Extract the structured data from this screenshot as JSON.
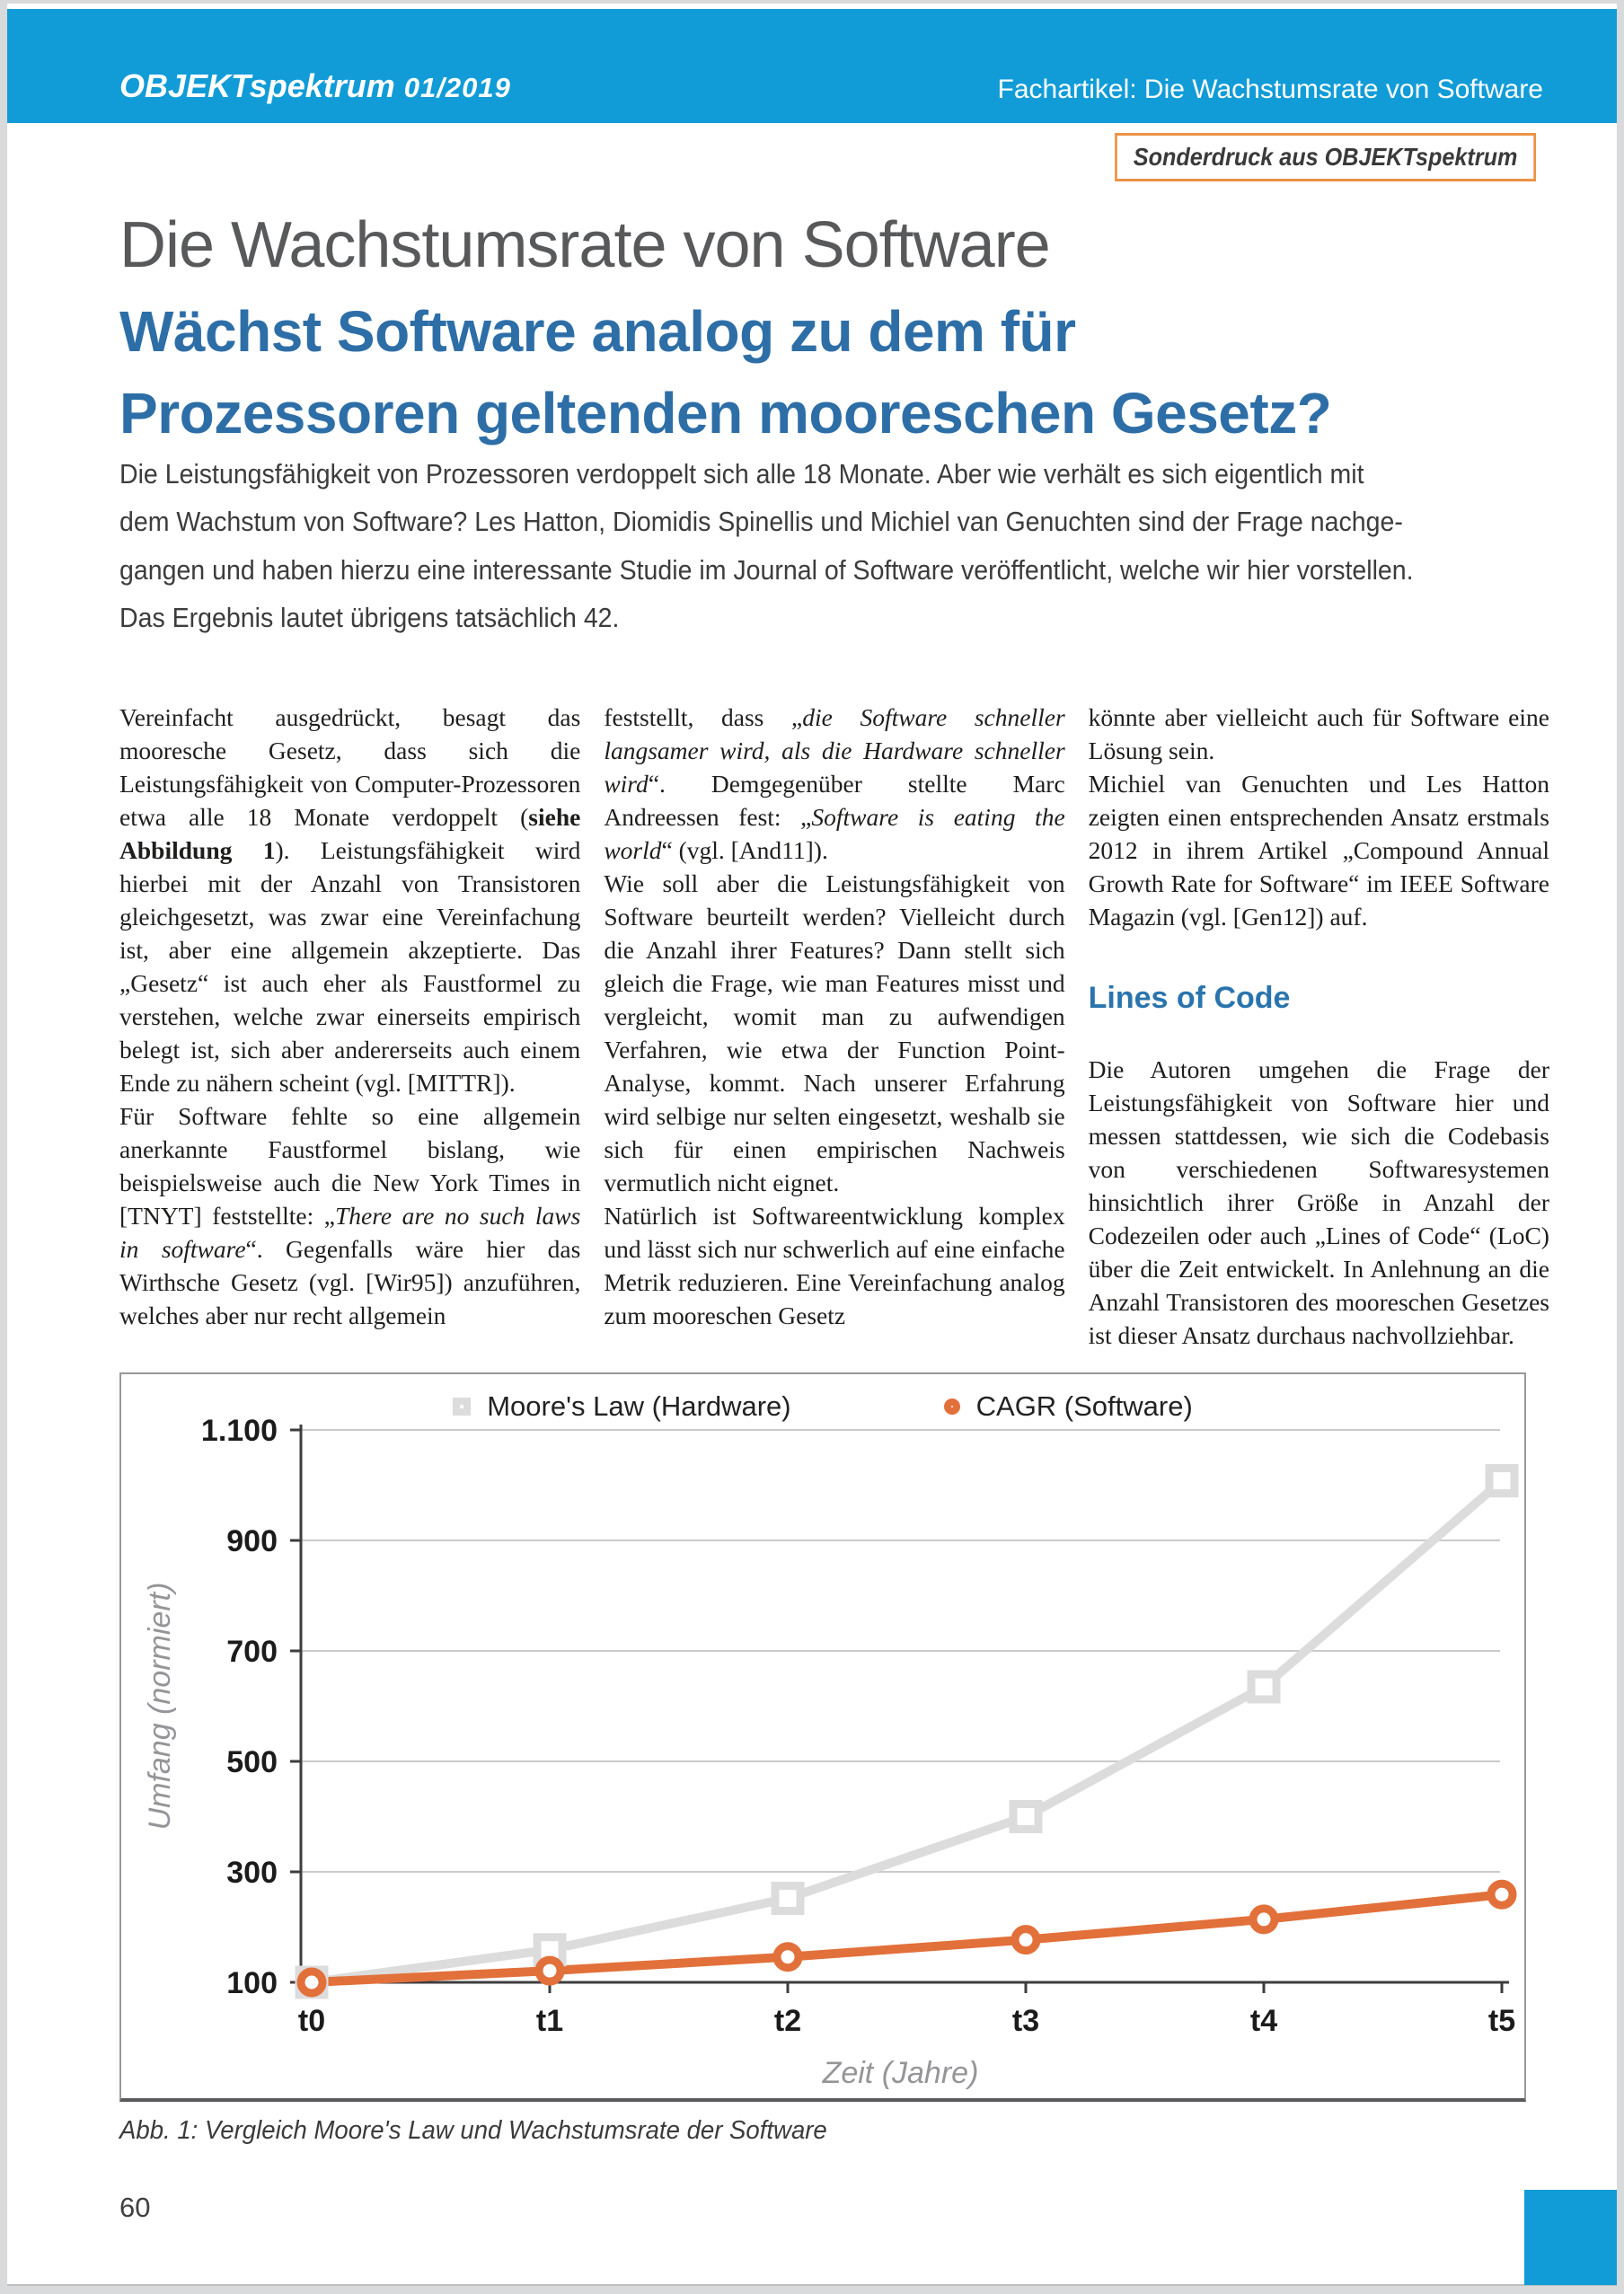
{
  "colors": {
    "brand_blue": "#119cd8",
    "headline_blue": "#2d6ea7",
    "heading_blue": "#2a74ae",
    "accent_orange": "#e2703a",
    "badge_orange": "#eb9246",
    "moore_gray": "#dcdcdc"
  },
  "header": {
    "magazine": "OBJEKTspektrum",
    "issue": "01/2019",
    "article_label": "Fachartikel: Die Wachstumsrate von Software",
    "badge": "Sonderdruck aus OBJEKTspektrum"
  },
  "article": {
    "title": "Die Wachstumsrate von Software",
    "subtitle": "Wächst Software analog zu dem für\nProzessoren geltenden mooreschen Gesetz?",
    "lead": "Die Leistungsfähigkeit von Prozessoren verdoppelt sich alle 18 Monate. Aber wie verhält es sich eigentlich mit\ndem Wachstum von Software? Les Hatton, Diomidis Spinellis und Michiel van Genuchten sind der Frage nachge-\ngangen und haben hierzu eine interessante Studie im Journal of Software veröffentlicht, welche wir hier vorstellen.\nDas Ergebnis lautet übrigens tatsächlich 42."
  },
  "body": {
    "columns": [
      {
        "blocks": [
          {
            "type": "p",
            "runs": [
              {
                "t": "Vereinfacht ausgedrückt, besagt das mooresche Gesetz, dass sich die Leistungsfähigkeit von Computer-Prozessoren etwa alle 18 Monate verdoppelt ("
              },
              {
                "t": "siehe Abbildung 1",
                "s": "b"
              },
              {
                "t": "). Leistungsfähigkeit wird hierbei mit der Anzahl von Transistoren gleichgesetzt, was zwar eine Vereinfachung ist, aber eine allgemein akzeptierte. Das „Gesetz“ ist auch eher als Faustformel zu verstehen, welche zwar einerseits empirisch belegt ist, sich aber andererseits auch einem Ende zu nähern scheint (vgl. [MITTR])."
              }
            ]
          },
          {
            "type": "p",
            "runs": [
              {
                "t": "Für Software fehlte so eine allgemein anerkannte Faustformel bislang, wie beispielsweise auch die New York Times in [TNYT] feststellte: „"
              },
              {
                "t": "There are no such laws in software",
                "s": "i"
              },
              {
                "t": "“. Gegenfalls wäre hier das Wirthsche Gesetz (vgl. [Wir95]) anzuführen, welches aber nur recht allgemein"
              }
            ]
          }
        ]
      },
      {
        "blocks": [
          {
            "type": "p",
            "runs": [
              {
                "t": "feststellt, dass „"
              },
              {
                "t": "die Software schneller langsamer wird, als die Hardware schneller wird",
                "s": "i"
              },
              {
                "t": "“. Demgegenüber stellte Marc Andreessen fest: „"
              },
              {
                "t": "Software is eating the world",
                "s": "i"
              },
              {
                "t": "“ (vgl. [And11])."
              }
            ]
          },
          {
            "type": "p",
            "runs": [
              {
                "t": "Wie soll aber die Leistungsfähigkeit von Software beurteilt werden? Vielleicht durch die Anzahl ihrer Features? Dann stellt sich gleich die Frage, wie man Features misst und vergleicht, womit man zu aufwendigen Verfahren, wie etwa der Function Point-Analyse, kommt. Nach unserer Erfahrung wird selbige nur selten eingesetzt, weshalb sie sich für einen empirischen Nachweis vermutlich nicht eignet."
              }
            ]
          },
          {
            "type": "p",
            "runs": [
              {
                "t": "Natürlich ist Softwareentwicklung komplex und lässt sich nur schwerlich auf eine einfache Metrik reduzieren. Eine Vereinfachung analog zum mooreschen Gesetz"
              }
            ]
          }
        ]
      },
      {
        "blocks": [
          {
            "type": "p",
            "runs": [
              {
                "t": "könnte aber vielleicht auch für Software eine Lösung sein."
              }
            ]
          },
          {
            "type": "p",
            "runs": [
              {
                "t": "Michiel van Genuchten und Les Hatton zeigten einen entsprechenden Ansatz erstmals 2012 in ihrem Artikel „Compound Annual Growth Rate for Software“ im IEEE Software Magazin (vgl. [Gen12]) auf."
              }
            ]
          },
          {
            "type": "h2",
            "text": "Lines of Code"
          },
          {
            "type": "p",
            "runs": [
              {
                "t": "Die Autoren umgehen die Frage der Leistungsfähigkeit von Software hier und messen stattdessen, wie sich die Codebasis von verschiedenen Softwaresystemen hinsichtlich ihrer Größe in Anzahl der Codezeilen oder auch „Lines of Code“ (LoC) über die Zeit entwickelt. In Anlehnung an die Anzahl Transistoren des mooreschen Gesetzes ist dieser Ansatz durchaus nachvollziehbar."
              }
            ]
          }
        ]
      }
    ]
  },
  "figure": {
    "caption": "Abb. 1: Vergleich Moore's Law und Wachstumsrate der Software",
    "legend": [
      {
        "label": "Moore's Law (Hardware)",
        "color": "#dcdcdc",
        "marker": "square"
      },
      {
        "label": "CAGR (Software)",
        "color": "#e2703a",
        "marker": "circle"
      }
    ]
  },
  "chart_data": {
    "type": "line",
    "x": [
      "t0",
      "t1",
      "t2",
      "t3",
      "t4",
      "t5"
    ],
    "series": [
      {
        "name": "Moore's Law (Hardware)",
        "color": "#dcdcdc",
        "marker": "square",
        "values": [
          100,
          159,
          252,
          400,
          635,
          1008
        ]
      },
      {
        "name": "CAGR (Software)",
        "color": "#e2703a",
        "marker": "circle",
        "values": [
          100,
          121,
          146,
          177,
          214,
          259
        ]
      }
    ],
    "xlabel": "Zeit (Jahre)",
    "ylabel": "Umfang (normiert)",
    "yticks": [
      100,
      300,
      500,
      700,
      900,
      1100
    ],
    "ytick_labels": [
      "100",
      "300",
      "500",
      "700",
      "900",
      "1.100"
    ],
    "ylim": [
      100,
      1100
    ],
    "grid": true,
    "legend_position": "top"
  },
  "footer": {
    "page_number": "60"
  }
}
